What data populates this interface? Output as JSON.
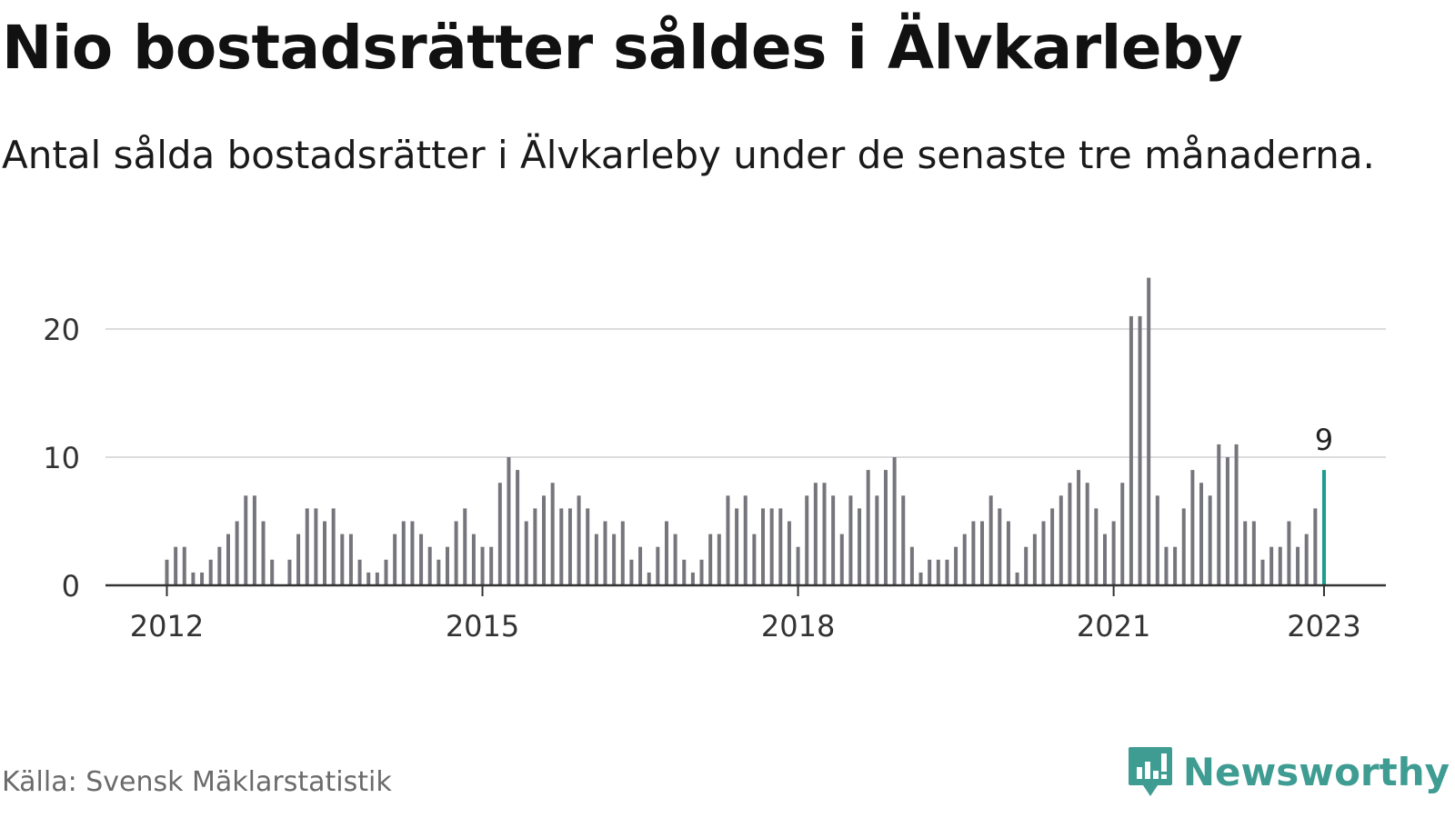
{
  "title": "Nio bostadsrätter såldes i Älvkarleby",
  "subtitle": "Antal sålda bostadsrätter i Älvkarleby under de senaste tre månaderna.",
  "source": "Källa: Svensk Mäklarstatistik",
  "brand": {
    "name": "Newsworthy",
    "icon": "bar-chart-speech-bubble-icon"
  },
  "colors": {
    "bar": "#75757c",
    "highlight": "#1a9e8f",
    "grid": "#dcdcdc",
    "axis": "#333333",
    "brand": "#3f9c92"
  },
  "chart_data": {
    "type": "bar",
    "x_start": "2012-01",
    "x_end": "2023-01",
    "frequency": "monthly",
    "values": [
      2,
      3,
      3,
      1,
      1,
      2,
      3,
      4,
      5,
      7,
      7,
      5,
      2,
      0,
      2,
      4,
      6,
      6,
      5,
      6,
      4,
      4,
      2,
      1,
      1,
      2,
      4,
      5,
      5,
      4,
      3,
      2,
      3,
      5,
      6,
      4,
      3,
      3,
      8,
      10,
      9,
      5,
      6,
      7,
      8,
      6,
      6,
      7,
      6,
      4,
      5,
      4,
      5,
      2,
      3,
      1,
      3,
      5,
      4,
      2,
      1,
      2,
      4,
      4,
      7,
      6,
      7,
      4,
      6,
      6,
      6,
      5,
      3,
      7,
      8,
      8,
      7,
      4,
      7,
      6,
      9,
      7,
      9,
      10,
      7,
      3,
      1,
      2,
      2,
      2,
      3,
      4,
      5,
      5,
      7,
      6,
      5,
      1,
      3,
      4,
      5,
      6,
      7,
      8,
      9,
      8,
      6,
      4,
      5,
      8,
      21,
      21,
      24,
      7,
      3,
      3,
      6,
      9,
      8,
      7,
      11,
      10,
      11,
      5,
      5,
      2,
      3,
      3,
      5,
      3,
      4,
      6,
      9
    ],
    "highlight_last": true,
    "highlight_label": "9",
    "y_ticks": [
      0,
      10,
      20
    ],
    "ylim": [
      0,
      24
    ],
    "x_ticks": [
      "2012",
      "2015",
      "2018",
      "2021",
      "2023"
    ],
    "grid": true
  }
}
